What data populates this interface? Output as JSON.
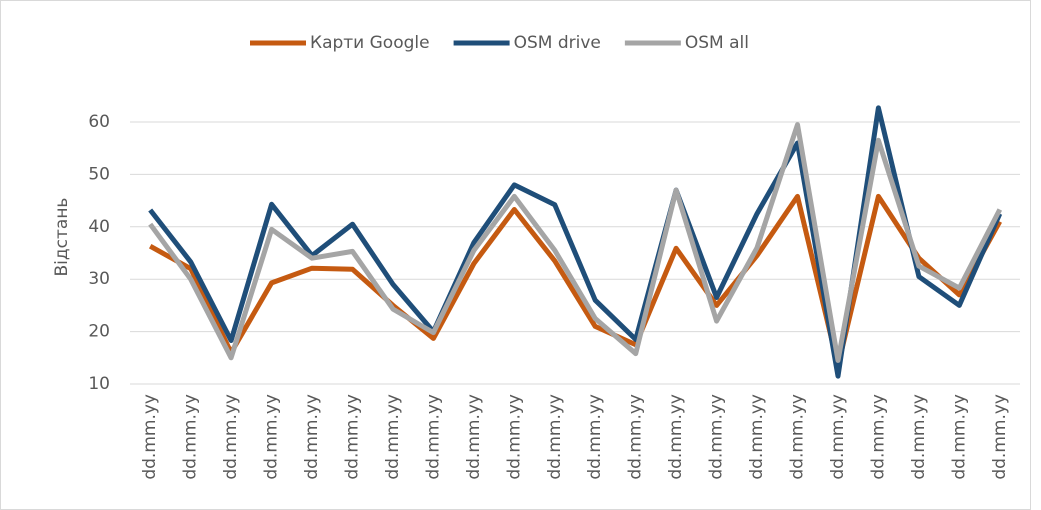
{
  "chart_data": {
    "type": "line",
    "y_label": "Відстань",
    "categories": [
      "dd.mm.yy",
      "dd.mm.yy",
      "dd.mm.yy",
      "dd.mm.yy",
      "dd.mm.yy",
      "dd.mm.yy",
      "dd.mm.yy",
      "dd.mm.yy",
      "dd.mm.yy",
      "dd.mm.yy",
      "dd.mm.yy",
      "dd.mm.yy",
      "dd.mm.yy",
      "dd.mm.yy",
      "dd.mm.yy",
      "dd.mm.yy",
      "dd.mm.yy",
      "dd.mm.yy",
      "dd.mm.yy",
      "dd.mm.yy",
      "dd.mm.yy",
      "dd.mm.yy"
    ],
    "series": [
      {
        "name": "Карти Google",
        "color": "#c55a11",
        "values": [
          36.3,
          32,
          16,
          29.3,
          32.1,
          31.9,
          25,
          18.7,
          33,
          43.3,
          33.5,
          21,
          17.5,
          35.9,
          25,
          34.5,
          45.8,
          13.5,
          45.8,
          34,
          27,
          41
        ]
      },
      {
        "name": "OSM drive",
        "color": "#1f4e79",
        "values": [
          43.2,
          33.3,
          18.3,
          44.3,
          34.5,
          40.5,
          29,
          20,
          37,
          48,
          44.2,
          26,
          18.5,
          47,
          26.5,
          42.5,
          56,
          11.5,
          62.7,
          30.5,
          25,
          42.5
        ]
      },
      {
        "name": "OSM all",
        "color": "#a5a5a5",
        "values": [
          40.5,
          30,
          15,
          39.5,
          34,
          35.3,
          24.3,
          19.8,
          35.5,
          45.8,
          35.5,
          22.5,
          15.8,
          47,
          22,
          36,
          59.5,
          14.5,
          56.5,
          32.5,
          28.3,
          43.3
        ]
      }
    ],
    "ylim": [
      10,
      65
    ],
    "yticks": [
      10,
      20,
      30,
      40,
      50,
      60
    ],
    "grid": true,
    "legend": "top"
  }
}
